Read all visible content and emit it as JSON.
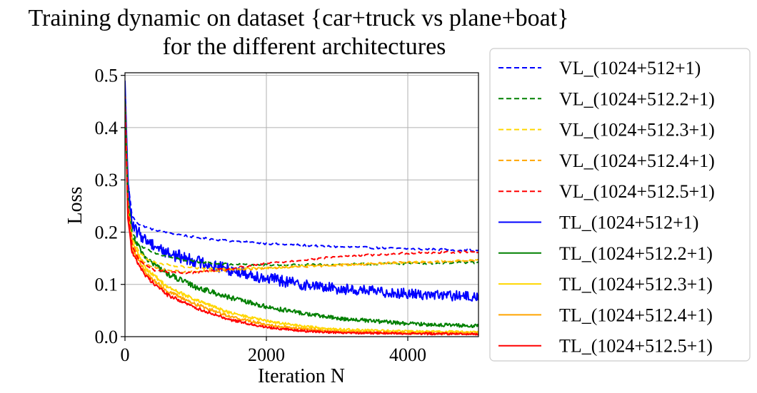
{
  "chart_data": {
    "type": "line",
    "title": "Training dynamic on dataset {car+truck vs plane+boat}",
    "subtitle": "for the different architectures",
    "xlabel": "Iteration N",
    "ylabel": "Loss",
    "xlim": [
      0,
      5000
    ],
    "ylim": [
      0,
      0.505
    ],
    "xticks": [
      0,
      2000,
      4000
    ],
    "xtick_labels": [
      "0",
      "2000",
      "4000"
    ],
    "yticks": [
      0.0,
      0.1,
      0.2,
      0.3,
      0.4,
      0.5
    ],
    "ytick_labels": [
      "0.0",
      "0.1",
      "0.2",
      "0.3",
      "0.4",
      "0.5"
    ],
    "grid": true,
    "legend_position": "outside-right",
    "series": [
      {
        "name": "VL_(1024+512+1)",
        "color": "#0000ff",
        "style": "dashed",
        "noise": 0.002,
        "points": [
          [
            0,
            0.47
          ],
          [
            40,
            0.3
          ],
          [
            100,
            0.23
          ],
          [
            200,
            0.215
          ],
          [
            400,
            0.205
          ],
          [
            700,
            0.197
          ],
          [
            1000,
            0.19
          ],
          [
            1500,
            0.183
          ],
          [
            2000,
            0.178
          ],
          [
            3000,
            0.172
          ],
          [
            4000,
            0.168
          ],
          [
            5000,
            0.165
          ]
        ]
      },
      {
        "name": "VL_(1024+512.2+1)",
        "color": "#008000",
        "style": "dashed",
        "noise": 0.002,
        "points": [
          [
            0,
            0.45
          ],
          [
            40,
            0.27
          ],
          [
            100,
            0.2
          ],
          [
            200,
            0.175
          ],
          [
            400,
            0.16
          ],
          [
            700,
            0.15
          ],
          [
            1000,
            0.143
          ],
          [
            1500,
            0.138
          ],
          [
            2000,
            0.137
          ],
          [
            3000,
            0.138
          ],
          [
            4000,
            0.14
          ],
          [
            5000,
            0.142
          ]
        ]
      },
      {
        "name": "VL_(1024+512.3+1)",
        "color": "#ffd700",
        "style": "dashed",
        "noise": 0.002,
        "points": [
          [
            0,
            0.44
          ],
          [
            40,
            0.26
          ],
          [
            100,
            0.19
          ],
          [
            200,
            0.16
          ],
          [
            400,
            0.142
          ],
          [
            700,
            0.135
          ],
          [
            1000,
            0.131
          ],
          [
            1500,
            0.13
          ],
          [
            2000,
            0.132
          ],
          [
            3000,
            0.137
          ],
          [
            4000,
            0.142
          ],
          [
            5000,
            0.146
          ]
        ]
      },
      {
        "name": "VL_(1024+512.4+1)",
        "color": "#ffa500",
        "style": "dashed",
        "noise": 0.002,
        "points": [
          [
            0,
            0.44
          ],
          [
            40,
            0.25
          ],
          [
            100,
            0.18
          ],
          [
            200,
            0.15
          ],
          [
            400,
            0.132
          ],
          [
            700,
            0.125
          ],
          [
            1000,
            0.124
          ],
          [
            1500,
            0.127
          ],
          [
            2000,
            0.131
          ],
          [
            3000,
            0.137
          ],
          [
            4000,
            0.142
          ],
          [
            5000,
            0.146
          ]
        ]
      },
      {
        "name": "VL_(1024+512.5+1)",
        "color": "#ff0000",
        "style": "dashed",
        "noise": 0.002,
        "points": [
          [
            0,
            0.44
          ],
          [
            40,
            0.25
          ],
          [
            100,
            0.175
          ],
          [
            200,
            0.145
          ],
          [
            400,
            0.128
          ],
          [
            700,
            0.122
          ],
          [
            1000,
            0.123
          ],
          [
            1500,
            0.13
          ],
          [
            2000,
            0.14
          ],
          [
            3000,
            0.153
          ],
          [
            4000,
            0.16
          ],
          [
            5000,
            0.163
          ]
        ]
      },
      {
        "name": "TL_(1024+512+1)",
        "color": "#0000ff",
        "style": "solid",
        "noise": 0.012,
        "points": [
          [
            0,
            0.49
          ],
          [
            40,
            0.3
          ],
          [
            100,
            0.21
          ],
          [
            300,
            0.185
          ],
          [
            600,
            0.16
          ],
          [
            1000,
            0.145
          ],
          [
            1500,
            0.128
          ],
          [
            2000,
            0.112
          ],
          [
            2500,
            0.1
          ],
          [
            3000,
            0.092
          ],
          [
            4000,
            0.082
          ],
          [
            5000,
            0.076
          ]
        ]
      },
      {
        "name": "TL_(1024+512.2+1)",
        "color": "#008000",
        "style": "solid",
        "noise": 0.006,
        "points": [
          [
            0,
            0.47
          ],
          [
            40,
            0.26
          ],
          [
            100,
            0.19
          ],
          [
            300,
            0.15
          ],
          [
            600,
            0.12
          ],
          [
            1000,
            0.095
          ],
          [
            1500,
            0.074
          ],
          [
            2000,
            0.057
          ],
          [
            2500,
            0.045
          ],
          [
            3000,
            0.035
          ],
          [
            4000,
            0.025
          ],
          [
            5000,
            0.02
          ]
        ]
      },
      {
        "name": "TL_(1024+512.3+1)",
        "color": "#ffd700",
        "style": "solid",
        "noise": 0.004,
        "points": [
          [
            0,
            0.46
          ],
          [
            40,
            0.25
          ],
          [
            100,
            0.18
          ],
          [
            300,
            0.13
          ],
          [
            600,
            0.095
          ],
          [
            1000,
            0.07
          ],
          [
            1500,
            0.045
          ],
          [
            2000,
            0.03
          ],
          [
            2500,
            0.02
          ],
          [
            3000,
            0.014
          ],
          [
            4000,
            0.01
          ],
          [
            5000,
            0.009
          ]
        ]
      },
      {
        "name": "TL_(1024+512.4+1)",
        "color": "#ffa500",
        "style": "solid",
        "noise": 0.004,
        "points": [
          [
            0,
            0.46
          ],
          [
            40,
            0.24
          ],
          [
            100,
            0.17
          ],
          [
            300,
            0.12
          ],
          [
            600,
            0.087
          ],
          [
            1000,
            0.062
          ],
          [
            1500,
            0.038
          ],
          [
            2000,
            0.023
          ],
          [
            2500,
            0.015
          ],
          [
            3000,
            0.01
          ],
          [
            4000,
            0.007
          ],
          [
            5000,
            0.006
          ]
        ]
      },
      {
        "name": "TL_(1024+512.5+1)",
        "color": "#ff0000",
        "style": "solid",
        "noise": 0.004,
        "points": [
          [
            0,
            0.46
          ],
          [
            40,
            0.23
          ],
          [
            100,
            0.16
          ],
          [
            300,
            0.115
          ],
          [
            600,
            0.08
          ],
          [
            1000,
            0.055
          ],
          [
            1500,
            0.032
          ],
          [
            2000,
            0.018
          ],
          [
            2500,
            0.011
          ],
          [
            3000,
            0.008
          ],
          [
            4000,
            0.006
          ],
          [
            5000,
            0.005
          ]
        ]
      }
    ]
  }
}
